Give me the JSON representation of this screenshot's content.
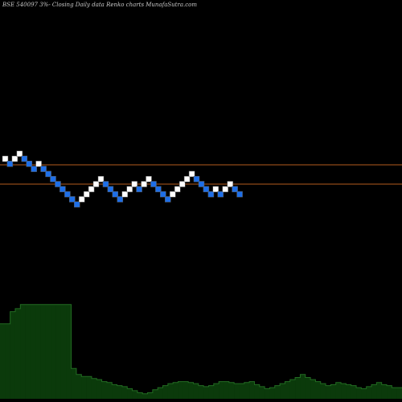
{
  "header": {
    "title": "BSE 540097 3%-  Closing Daily data  Renko  charts MunafaSutra.com"
  },
  "colors": {
    "background": "#000000",
    "up_brick": "#ffffff",
    "down_brick": "#1e6fe8",
    "brick_edge": "#5c5c5c",
    "level_line": "#b35d1e",
    "volume_fill": "#0b3a0b",
    "volume_edge": "#226b22",
    "volume_label": "#cfcfcf"
  },
  "chart_data": [
    {
      "type": "renko",
      "brick_direction": [
        "up",
        "down",
        "up",
        "up",
        "down",
        "down",
        "down",
        "up",
        "down",
        "down",
        "down",
        "down",
        "down",
        "down",
        "down",
        "down",
        "up",
        "up",
        "up",
        "up",
        "up",
        "down",
        "down",
        "down",
        "down",
        "up",
        "up",
        "up",
        "down",
        "up",
        "up",
        "down",
        "down",
        "down",
        "down",
        "up",
        "up",
        "up",
        "up",
        "up",
        "down",
        "down",
        "down",
        "down",
        "up",
        "down",
        "up",
        "up",
        "down",
        "down"
      ],
      "horizontal_levels": 2
    },
    {
      "type": "bar",
      "note_values": "relative volume levels (axis not printed)",
      "values": [
        0.74,
        0.74,
        0.86,
        0.89,
        0.93,
        0.93,
        0.93,
        0.93,
        0.93,
        0.93,
        0.93,
        0.93,
        0.93,
        0.93,
        0.3,
        0.24,
        0.22,
        0.22,
        0.2,
        0.19,
        0.17,
        0.16,
        0.14,
        0.13,
        0.12,
        0.1,
        0.08,
        0.06,
        0.05,
        0.06,
        0.09,
        0.11,
        0.13,
        0.15,
        0.16,
        0.17,
        0.17,
        0.16,
        0.15,
        0.13,
        0.12,
        0.13,
        0.15,
        0.17,
        0.17,
        0.16,
        0.15,
        0.15,
        0.16,
        0.17,
        0.14,
        0.12,
        0.1,
        0.11,
        0.13,
        0.15,
        0.17,
        0.19,
        0.21,
        0.24,
        0.21,
        0.19,
        0.17,
        0.15,
        0.13,
        0.14,
        0.16,
        0.15,
        0.14,
        0.13,
        0.11,
        0.1,
        0.12,
        0.14,
        0.16,
        0.14,
        0.13,
        0.11,
        0.11
      ]
    }
  ]
}
